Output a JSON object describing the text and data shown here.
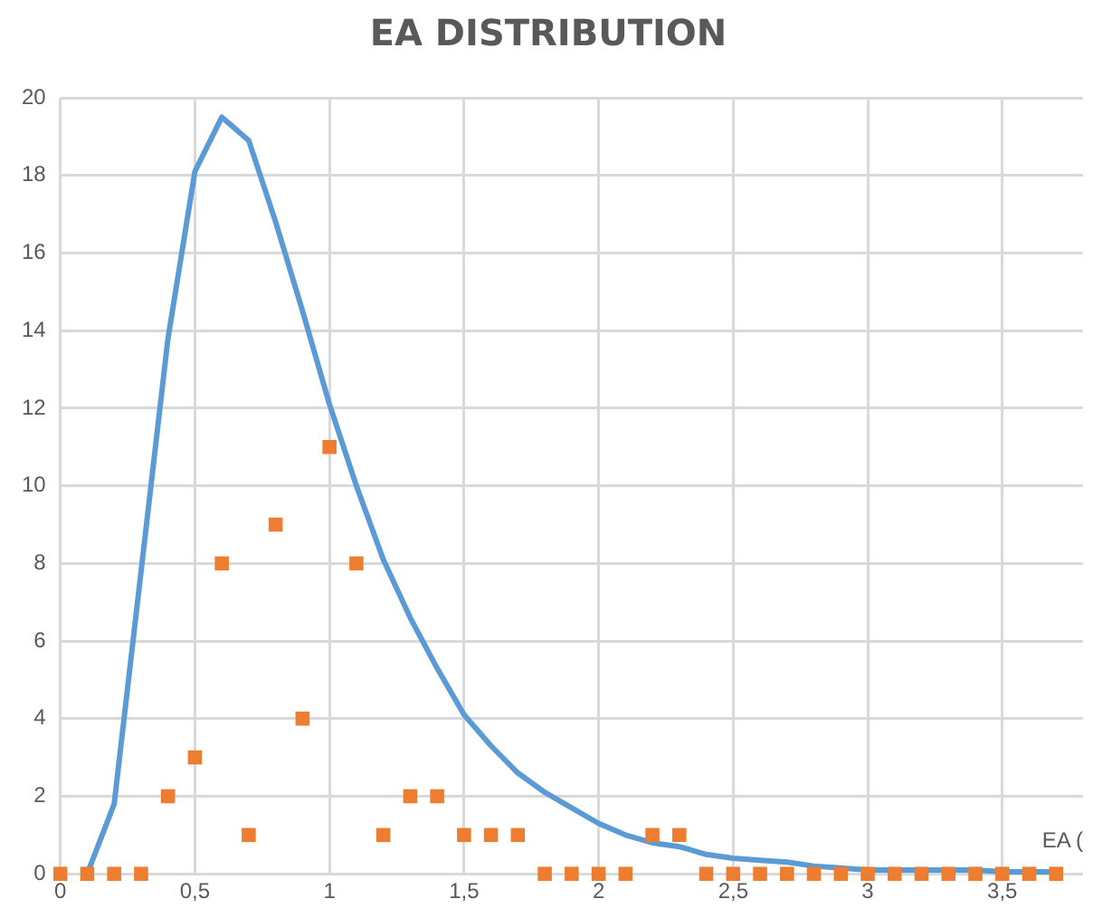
{
  "chart_data": {
    "type": "line",
    "title": "EA DISTRIBUTION",
    "xlabel": "EA (",
    "xlim": [
      0,
      3.8
    ],
    "xticks": [
      0,
      {
        "value": 0.5,
        "label": "0,5"
      },
      1,
      {
        "value": 1.5,
        "label": "1,5"
      },
      2,
      {
        "value": 2.5,
        "label": "2,5"
      },
      3,
      {
        "value": 3.5,
        "label": "3,5"
      }
    ],
    "ylim": [
      0,
      20
    ],
    "yticks": [
      0,
      2,
      4,
      6,
      8,
      10,
      12,
      14,
      16,
      18,
      20
    ],
    "grid": true,
    "legend": false,
    "series": [
      {
        "color": "#5b9bd5",
        "marker": "none",
        "line_style": "solid",
        "x": [
          0.1,
          0.2,
          0.3,
          0.4,
          0.5,
          0.6,
          0.7,
          0.8,
          0.9,
          1.0,
          1.1,
          1.2,
          1.3,
          1.4,
          1.5,
          1.6,
          1.7,
          1.8,
          1.9,
          2.0,
          2.1,
          2.2,
          2.3,
          2.4,
          2.5,
          2.6,
          2.7,
          2.8,
          2.9,
          3.0,
          3.1,
          3.2,
          3.3,
          3.4,
          3.5,
          3.6,
          3.7
        ],
        "values": [
          0,
          1.8,
          7.8,
          13.8,
          18.1,
          19.5,
          18.9,
          16.8,
          14.5,
          12.1,
          10,
          8.1,
          6.6,
          5.3,
          4.1,
          3.3,
          2.6,
          2.1,
          1.7,
          1.3,
          1,
          0.8,
          0.7,
          0.5,
          0.4,
          0.35,
          0.3,
          0.2,
          0.15,
          0.1,
          0.1,
          0.1,
          0.1,
          0.1,
          0.05,
          0.05,
          0.05
        ]
      },
      {
        "type": "scatter",
        "color": "#ed7d31",
        "marker": "square",
        "x": [
          0,
          0.1,
          0.2,
          0.3,
          0.4,
          0.5,
          0.6,
          0.7,
          0.8,
          0.9,
          1.0,
          1.1,
          1.2,
          1.3,
          1.4,
          1.5,
          1.6,
          1.7,
          1.8,
          1.9,
          2.0,
          2.1,
          2.2,
          2.3,
          2.4,
          2.5,
          2.6,
          2.7,
          2.8,
          2.9,
          3.0,
          3.1,
          3.2,
          3.3,
          3.4,
          3.5,
          3.6,
          3.7
        ],
        "values": [
          0,
          0,
          0,
          0,
          2,
          3,
          8,
          1,
          9,
          4,
          11,
          8,
          1,
          2,
          2,
          1,
          1,
          1,
          0,
          0,
          0,
          0,
          1,
          1,
          0,
          0,
          0,
          0,
          0,
          0,
          0,
          0,
          0,
          0,
          0,
          0,
          0,
          0
        ]
      }
    ]
  }
}
